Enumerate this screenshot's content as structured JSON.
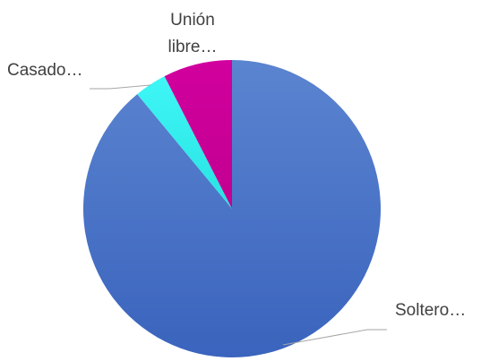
{
  "chart_data": {
    "type": "pie",
    "title": "",
    "start_angle_deg": 0,
    "direction": "clockwise",
    "slices": [
      {
        "label": "Soltero…",
        "value": 89,
        "color": "#4472c4"
      },
      {
        "label": "Casado…",
        "value": 3.5,
        "color": "#33eeee"
      },
      {
        "label": "Unión libre…",
        "value": 7.5,
        "color": "#cc0099"
      }
    ],
    "legend": "none",
    "labels": "outside-with-leader-lines"
  }
}
